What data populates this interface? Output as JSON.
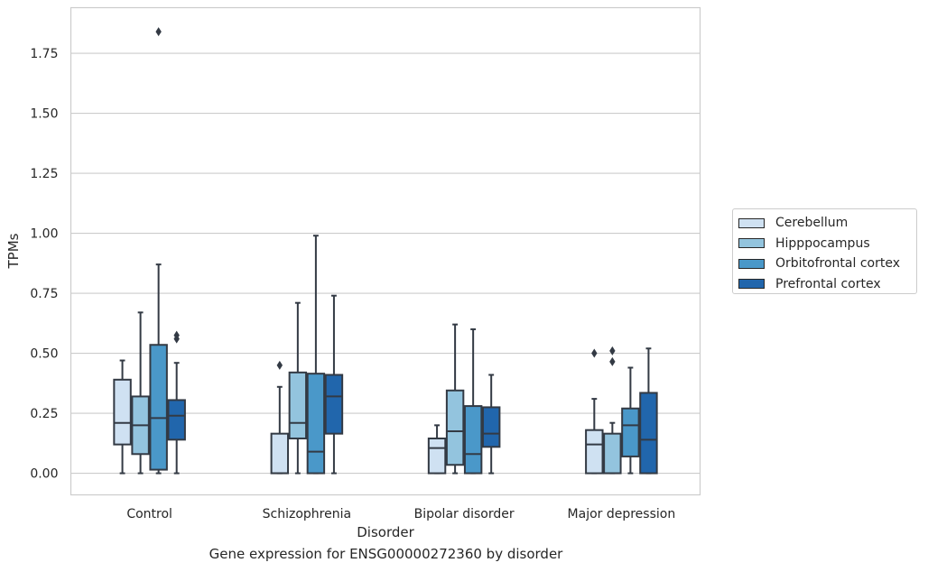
{
  "caption": "Gene expression for ENSG00000272360 by disorder",
  "chart_data": {
    "type": "boxplot",
    "xlabel": "Disorder",
    "ylabel": "TPMs",
    "ylim": [
      -0.09,
      1.94
    ],
    "yticks": [
      0.0,
      0.25,
      0.5,
      0.75,
      1.0,
      1.25,
      1.5,
      1.75
    ],
    "ytick_labels": [
      "0.00",
      "0.25",
      "0.50",
      "0.75",
      "1.00",
      "1.25",
      "1.50",
      "1.75"
    ],
    "grid": true,
    "legend_position": "right",
    "categories": [
      "Control",
      "Schizophrenia",
      "Bipolar disorder",
      "Major depression"
    ],
    "series": [
      {
        "name": "Cerebellum",
        "color": "#cfe1f2",
        "boxes": [
          {
            "whislo": 0.0,
            "q1": 0.12,
            "med": 0.21,
            "q3": 0.39,
            "whishi": 0.47,
            "fliers": []
          },
          {
            "whislo": 0.0,
            "q1": 0.0,
            "med": 0.0,
            "q3": 0.165,
            "whishi": 0.36,
            "fliers": [
              0.45
            ]
          },
          {
            "whislo": 0.0,
            "q1": 0.0,
            "med": 0.105,
            "q3": 0.145,
            "whishi": 0.2,
            "fliers": []
          },
          {
            "whislo": 0.0,
            "q1": 0.0,
            "med": 0.12,
            "q3": 0.18,
            "whishi": 0.31,
            "fliers": [
              0.5
            ]
          }
        ]
      },
      {
        "name": "Hipppocampus",
        "color": "#93c4de",
        "boxes": [
          {
            "whislo": 0.0,
            "q1": 0.08,
            "med": 0.2,
            "q3": 0.32,
            "whishi": 0.67,
            "fliers": []
          },
          {
            "whislo": 0.0,
            "q1": 0.145,
            "med": 0.21,
            "q3": 0.42,
            "whishi": 0.71,
            "fliers": []
          },
          {
            "whislo": 0.0,
            "q1": 0.035,
            "med": 0.175,
            "q3": 0.345,
            "whishi": 0.62,
            "fliers": []
          },
          {
            "whislo": 0.0,
            "q1": 0.0,
            "med": 0.0,
            "q3": 0.165,
            "whishi": 0.21,
            "fliers": [
              0.51,
              0.465
            ]
          }
        ]
      },
      {
        "name": "Orbitofrontal cortex",
        "color": "#4a98c9",
        "boxes": [
          {
            "whislo": 0.0,
            "q1": 0.015,
            "med": 0.23,
            "q3": 0.535,
            "whishi": 0.87,
            "fliers": [
              1.84
            ]
          },
          {
            "whislo": 0.0,
            "q1": 0.0,
            "med": 0.09,
            "q3": 0.415,
            "whishi": 0.99,
            "fliers": []
          },
          {
            "whislo": 0.0,
            "q1": 0.0,
            "med": 0.08,
            "q3": 0.28,
            "whishi": 0.6,
            "fliers": []
          },
          {
            "whislo": 0.0,
            "q1": 0.07,
            "med": 0.2,
            "q3": 0.27,
            "whishi": 0.44,
            "fliers": []
          }
        ]
      },
      {
        "name": "Prefrontal cortex",
        "color": "#2166ac",
        "boxes": [
          {
            "whislo": 0.0,
            "q1": 0.14,
            "med": 0.24,
            "q3": 0.305,
            "whishi": 0.46,
            "fliers": [
              0.575,
              0.56
            ]
          },
          {
            "whislo": 0.0,
            "q1": 0.165,
            "med": 0.32,
            "q3": 0.41,
            "whishi": 0.74,
            "fliers": []
          },
          {
            "whislo": 0.0,
            "q1": 0.11,
            "med": 0.165,
            "q3": 0.275,
            "whishi": 0.41,
            "fliers": []
          },
          {
            "whislo": 0.0,
            "q1": 0.0,
            "med": 0.14,
            "q3": 0.335,
            "whishi": 0.52,
            "fliers": []
          }
        ]
      }
    ]
  }
}
